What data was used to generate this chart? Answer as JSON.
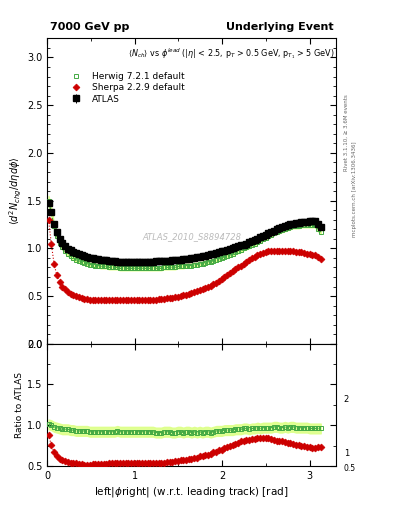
{
  "title_left": "7000 GeV pp",
  "title_right": "Underlying Event",
  "ylabel_main": "$\\langle d^2 N_{chg}/d\\eta d\\phi \\rangle$",
  "ylabel_ratio": "Ratio to ATLAS",
  "xlabel": "left|$\\phi$right| (w.r.t. leading track) [rad]",
  "annotation": "$\\langle N_{ch}\\rangle$ vs $\\phi^{lead}$ (|$\\eta$| < 2.5, p$_T$ > 0.5 GeV, p$_{T_1}$ > 5 GeV)",
  "watermark": "ATLAS_2010_S8894728",
  "right_label": "mcplots.cern.ch [arXiv:1306.3436]",
  "right_label2": "Rivet 3.1.10, ≥ 3.6M events",
  "ylim_main": [
    0.0,
    3.2
  ],
  "ylim_ratio": [
    0.5,
    2.0
  ],
  "xlim": [
    0.0,
    3.3
  ],
  "atlas_x": [
    0.0157,
    0.0471,
    0.0785,
    0.1099,
    0.1413,
    0.1727,
    0.2041,
    0.2356,
    0.267,
    0.2984,
    0.3298,
    0.3612,
    0.3926,
    0.424,
    0.4554,
    0.4869,
    0.5183,
    0.5497,
    0.5811,
    0.6125,
    0.6439,
    0.6753,
    0.7067,
    0.7382,
    0.7696,
    0.801,
    0.8324,
    0.8638,
    0.8952,
    0.9266,
    0.958,
    0.9894,
    1.0208,
    1.0522,
    1.0836,
    1.1151,
    1.1465,
    1.1779,
    1.2093,
    1.2407,
    1.2721,
    1.3035,
    1.3349,
    1.3663,
    1.3977,
    1.4292,
    1.4606,
    1.492,
    1.5234,
    1.5548,
    1.5862,
    1.6176,
    1.649,
    1.6804,
    1.7118,
    1.7433,
    1.7747,
    1.8061,
    1.8375,
    1.8689,
    1.9003,
    1.9317,
    1.9631,
    1.9945,
    2.0259,
    2.0574,
    2.0888,
    2.1202,
    2.1516,
    2.183,
    2.2144,
    2.2458,
    2.2772,
    2.3086,
    2.34,
    2.3715,
    2.4029,
    2.4343,
    2.4657,
    2.4971,
    2.5285,
    2.5599,
    2.5913,
    2.6227,
    2.6541,
    2.6856,
    2.717,
    2.7484,
    2.7798,
    2.8112,
    2.8426,
    2.874,
    2.9054,
    2.9368,
    2.9682,
    2.9997,
    3.0311,
    3.0625,
    3.0939,
    3.1253
  ],
  "atlas_y": [
    1.48,
    1.38,
    1.25,
    1.17,
    1.1,
    1.06,
    1.02,
    0.99,
    0.98,
    0.96,
    0.95,
    0.94,
    0.93,
    0.92,
    0.91,
    0.9,
    0.9,
    0.89,
    0.89,
    0.88,
    0.88,
    0.88,
    0.87,
    0.87,
    0.87,
    0.86,
    0.86,
    0.86,
    0.86,
    0.86,
    0.86,
    0.86,
    0.86,
    0.86,
    0.86,
    0.86,
    0.86,
    0.86,
    0.86,
    0.87,
    0.87,
    0.87,
    0.87,
    0.87,
    0.87,
    0.88,
    0.88,
    0.88,
    0.88,
    0.89,
    0.89,
    0.89,
    0.9,
    0.9,
    0.91,
    0.91,
    0.92,
    0.92,
    0.93,
    0.94,
    0.94,
    0.95,
    0.96,
    0.97,
    0.97,
    0.98,
    0.99,
    1.0,
    1.01,
    1.02,
    1.03,
    1.04,
    1.05,
    1.07,
    1.08,
    1.09,
    1.1,
    1.12,
    1.13,
    1.14,
    1.16,
    1.17,
    1.18,
    1.2,
    1.21,
    1.22,
    1.23,
    1.24,
    1.25,
    1.26,
    1.27,
    1.27,
    1.28,
    1.28,
    1.28,
    1.29,
    1.29,
    1.29,
    1.25,
    1.22
  ],
  "atlas_yerr": [
    0.03,
    0.02,
    0.02,
    0.02,
    0.01,
    0.01,
    0.01,
    0.01,
    0.01,
    0.01,
    0.01,
    0.01,
    0.01,
    0.01,
    0.01,
    0.01,
    0.01,
    0.01,
    0.01,
    0.01,
    0.01,
    0.01,
    0.01,
    0.01,
    0.01,
    0.01,
    0.01,
    0.01,
    0.01,
    0.01,
    0.01,
    0.01,
    0.01,
    0.01,
    0.01,
    0.01,
    0.01,
    0.01,
    0.01,
    0.01,
    0.01,
    0.01,
    0.01,
    0.01,
    0.01,
    0.01,
    0.01,
    0.01,
    0.01,
    0.01,
    0.01,
    0.01,
    0.01,
    0.01,
    0.01,
    0.01,
    0.01,
    0.01,
    0.01,
    0.01,
    0.01,
    0.01,
    0.01,
    0.01,
    0.01,
    0.01,
    0.01,
    0.01,
    0.01,
    0.01,
    0.01,
    0.01,
    0.01,
    0.01,
    0.01,
    0.01,
    0.01,
    0.01,
    0.01,
    0.01,
    0.01,
    0.01,
    0.01,
    0.01,
    0.01,
    0.01,
    0.01,
    0.01,
    0.01,
    0.01,
    0.01,
    0.01,
    0.01,
    0.01,
    0.01,
    0.01,
    0.01,
    0.01,
    0.02,
    0.02
  ],
  "herwig_x": [
    0.0157,
    0.0471,
    0.0785,
    0.1099,
    0.1413,
    0.1727,
    0.2041,
    0.2356,
    0.267,
    0.2984,
    0.3298,
    0.3612,
    0.3926,
    0.424,
    0.4554,
    0.4869,
    0.5183,
    0.5497,
    0.5811,
    0.6125,
    0.6439,
    0.6753,
    0.7067,
    0.7382,
    0.7696,
    0.801,
    0.8324,
    0.8638,
    0.8952,
    0.9266,
    0.958,
    0.9894,
    1.0208,
    1.0522,
    1.0836,
    1.1151,
    1.1465,
    1.1779,
    1.2093,
    1.2407,
    1.2721,
    1.3035,
    1.3349,
    1.3663,
    1.3977,
    1.4292,
    1.4606,
    1.492,
    1.5234,
    1.5548,
    1.5862,
    1.6176,
    1.649,
    1.6804,
    1.7118,
    1.7433,
    1.7747,
    1.8061,
    1.8375,
    1.8689,
    1.9003,
    1.9317,
    1.9631,
    1.9945,
    2.0259,
    2.0574,
    2.0888,
    2.1202,
    2.1516,
    2.183,
    2.2144,
    2.2458,
    2.2772,
    2.3086,
    2.34,
    2.3715,
    2.4029,
    2.4343,
    2.4657,
    2.4971,
    2.5285,
    2.5599,
    2.5913,
    2.6227,
    2.6541,
    2.6856,
    2.717,
    2.7484,
    2.7798,
    2.8112,
    2.8426,
    2.874,
    2.9054,
    2.9368,
    2.9682,
    2.9997,
    3.0311,
    3.0625,
    3.0939,
    3.1253
  ],
  "herwig_y": [
    1.5,
    1.38,
    1.23,
    1.13,
    1.06,
    1.01,
    0.97,
    0.94,
    0.92,
    0.9,
    0.88,
    0.87,
    0.86,
    0.85,
    0.84,
    0.83,
    0.83,
    0.82,
    0.82,
    0.81,
    0.81,
    0.81,
    0.8,
    0.8,
    0.8,
    0.8,
    0.79,
    0.79,
    0.79,
    0.79,
    0.79,
    0.79,
    0.79,
    0.79,
    0.79,
    0.79,
    0.79,
    0.79,
    0.79,
    0.79,
    0.79,
    0.79,
    0.8,
    0.8,
    0.8,
    0.8,
    0.8,
    0.81,
    0.81,
    0.81,
    0.82,
    0.82,
    0.82,
    0.83,
    0.83,
    0.84,
    0.84,
    0.85,
    0.86,
    0.86,
    0.87,
    0.88,
    0.89,
    0.9,
    0.91,
    0.92,
    0.93,
    0.94,
    0.96,
    0.97,
    0.98,
    1.0,
    1.01,
    1.02,
    1.04,
    1.05,
    1.07,
    1.08,
    1.1,
    1.11,
    1.13,
    1.14,
    1.16,
    1.17,
    1.18,
    1.19,
    1.2,
    1.21,
    1.22,
    1.23,
    1.23,
    1.23,
    1.24,
    1.24,
    1.24,
    1.24,
    1.24,
    1.24,
    1.2,
    1.17
  ],
  "herwig_band_err": [
    0.05,
    0.04,
    0.03,
    0.02,
    0.02,
    0.02,
    0.02,
    0.02,
    0.02,
    0.02,
    0.02,
    0.02,
    0.02,
    0.02,
    0.02,
    0.02,
    0.02,
    0.02,
    0.02,
    0.02,
    0.02,
    0.02,
    0.02,
    0.02,
    0.02,
    0.02,
    0.02,
    0.02,
    0.02,
    0.02,
    0.02,
    0.02,
    0.02,
    0.02,
    0.02,
    0.02,
    0.02,
    0.02,
    0.02,
    0.02,
    0.02,
    0.02,
    0.02,
    0.02,
    0.02,
    0.02,
    0.02,
    0.02,
    0.02,
    0.02,
    0.02,
    0.02,
    0.02,
    0.02,
    0.02,
    0.02,
    0.02,
    0.02,
    0.02,
    0.02,
    0.02,
    0.02,
    0.02,
    0.02,
    0.02,
    0.02,
    0.02,
    0.02,
    0.02,
    0.02,
    0.02,
    0.02,
    0.02,
    0.02,
    0.02,
    0.02,
    0.02,
    0.02,
    0.02,
    0.02,
    0.02,
    0.02,
    0.02,
    0.02,
    0.02,
    0.02,
    0.02,
    0.02,
    0.02,
    0.02,
    0.02,
    0.02,
    0.02,
    0.02,
    0.02,
    0.02,
    0.02,
    0.02,
    0.02,
    0.02
  ],
  "sherpa_x": [
    0.0157,
    0.0471,
    0.0785,
    0.1099,
    0.1413,
    0.1727,
    0.2041,
    0.2356,
    0.267,
    0.2984,
    0.3298,
    0.3612,
    0.3926,
    0.424,
    0.4554,
    0.4869,
    0.5183,
    0.5497,
    0.5811,
    0.6125,
    0.6439,
    0.6753,
    0.7067,
    0.7382,
    0.7696,
    0.801,
    0.8324,
    0.8638,
    0.8952,
    0.9266,
    0.958,
    0.9894,
    1.0208,
    1.0522,
    1.0836,
    1.1151,
    1.1465,
    1.1779,
    1.2093,
    1.2407,
    1.2721,
    1.3035,
    1.3349,
    1.3663,
    1.3977,
    1.4292,
    1.4606,
    1.492,
    1.5234,
    1.5548,
    1.5862,
    1.6176,
    1.649,
    1.6804,
    1.7118,
    1.7433,
    1.7747,
    1.8061,
    1.8375,
    1.8689,
    1.9003,
    1.9317,
    1.9631,
    1.9945,
    2.0259,
    2.0574,
    2.0888,
    2.1202,
    2.1516,
    2.183,
    2.2144,
    2.2458,
    2.2772,
    2.3086,
    2.34,
    2.3715,
    2.4029,
    2.4343,
    2.4657,
    2.4971,
    2.5285,
    2.5599,
    2.5913,
    2.6227,
    2.6541,
    2.6856,
    2.717,
    2.7484,
    2.7798,
    2.8112,
    2.8426,
    2.874,
    2.9054,
    2.9368,
    2.9682,
    2.9997,
    3.0311,
    3.0625,
    3.0939,
    3.1253
  ],
  "sherpa_y": [
    1.3,
    1.05,
    0.84,
    0.72,
    0.65,
    0.6,
    0.57,
    0.54,
    0.52,
    0.51,
    0.5,
    0.49,
    0.48,
    0.47,
    0.47,
    0.46,
    0.46,
    0.46,
    0.46,
    0.46,
    0.46,
    0.46,
    0.46,
    0.46,
    0.46,
    0.46,
    0.46,
    0.46,
    0.46,
    0.46,
    0.46,
    0.46,
    0.46,
    0.46,
    0.46,
    0.46,
    0.46,
    0.46,
    0.46,
    0.46,
    0.47,
    0.47,
    0.47,
    0.48,
    0.48,
    0.48,
    0.49,
    0.49,
    0.5,
    0.51,
    0.51,
    0.52,
    0.53,
    0.54,
    0.55,
    0.56,
    0.57,
    0.58,
    0.6,
    0.61,
    0.63,
    0.64,
    0.66,
    0.68,
    0.7,
    0.72,
    0.74,
    0.76,
    0.78,
    0.8,
    0.82,
    0.84,
    0.86,
    0.88,
    0.9,
    0.91,
    0.93,
    0.94,
    0.95,
    0.96,
    0.97,
    0.97,
    0.97,
    0.97,
    0.97,
    0.97,
    0.97,
    0.97,
    0.97,
    0.97,
    0.96,
    0.96,
    0.96,
    0.95,
    0.94,
    0.94,
    0.93,
    0.93,
    0.91,
    0.89
  ],
  "atlas_color": "#000000",
  "herwig_color": "#44aa44",
  "sherpa_color": "#cc0000",
  "herwig_band_color": "#ddff88",
  "atlas_marker": "s",
  "herwig_marker": "s",
  "sherpa_marker": "D",
  "atlas_markersize": 4,
  "herwig_markersize": 3.5,
  "sherpa_markersize": 3.5,
  "ratio_herwig_y": [
    1.01,
    1.0,
    0.98,
    0.97,
    0.96,
    0.95,
    0.95,
    0.95,
    0.94,
    0.94,
    0.93,
    0.93,
    0.93,
    0.93,
    0.93,
    0.92,
    0.92,
    0.92,
    0.92,
    0.92,
    0.92,
    0.92,
    0.92,
    0.92,
    0.92,
    0.93,
    0.92,
    0.92,
    0.92,
    0.92,
    0.92,
    0.92,
    0.92,
    0.92,
    0.92,
    0.92,
    0.92,
    0.92,
    0.92,
    0.91,
    0.91,
    0.91,
    0.92,
    0.92,
    0.92,
    0.91,
    0.91,
    0.92,
    0.92,
    0.91,
    0.92,
    0.92,
    0.91,
    0.92,
    0.91,
    0.92,
    0.91,
    0.92,
    0.92,
    0.91,
    0.92,
    0.93,
    0.93,
    0.93,
    0.94,
    0.94,
    0.94,
    0.94,
    0.95,
    0.95,
    0.95,
    0.96,
    0.96,
    0.95,
    0.96,
    0.96,
    0.97,
    0.96,
    0.97,
    0.97,
    0.97,
    0.97,
    0.98,
    0.98,
    0.97,
    0.97,
    0.98,
    0.97,
    0.98,
    0.98,
    0.97,
    0.97,
    0.97,
    0.97,
    0.97,
    0.96,
    0.96,
    0.96,
    0.96,
    0.96
  ],
  "ratio_herwig_band_err": 0.06,
  "ratio_sherpa_y": [
    0.88,
    0.76,
    0.67,
    0.62,
    0.59,
    0.57,
    0.56,
    0.55,
    0.53,
    0.53,
    0.53,
    0.52,
    0.52,
    0.51,
    0.51,
    0.51,
    0.52,
    0.52,
    0.52,
    0.52,
    0.52,
    0.52,
    0.53,
    0.53,
    0.53,
    0.53,
    0.53,
    0.54,
    0.54,
    0.54,
    0.54,
    0.54,
    0.54,
    0.54,
    0.54,
    0.54,
    0.54,
    0.54,
    0.54,
    0.53,
    0.54,
    0.54,
    0.54,
    0.55,
    0.55,
    0.55,
    0.56,
    0.56,
    0.57,
    0.57,
    0.57,
    0.58,
    0.59,
    0.6,
    0.6,
    0.62,
    0.62,
    0.63,
    0.64,
    0.65,
    0.67,
    0.67,
    0.69,
    0.7,
    0.72,
    0.73,
    0.75,
    0.76,
    0.77,
    0.78,
    0.8,
    0.81,
    0.82,
    0.82,
    0.83,
    0.83,
    0.84,
    0.84,
    0.84,
    0.84,
    0.84,
    0.83,
    0.82,
    0.81,
    0.8,
    0.8,
    0.79,
    0.78,
    0.78,
    0.77,
    0.76,
    0.76,
    0.75,
    0.74,
    0.73,
    0.73,
    0.72,
    0.72,
    0.73,
    0.73
  ]
}
